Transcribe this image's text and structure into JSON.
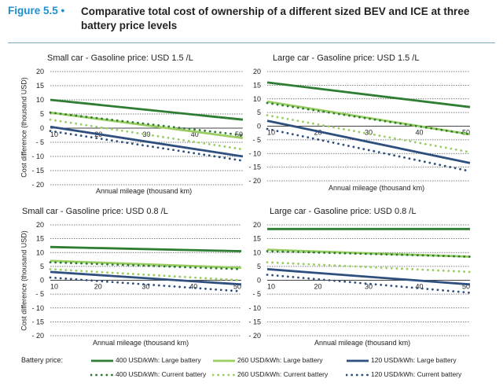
{
  "figure": {
    "number": "Figure 5.5 •",
    "title": "Comparative total cost of ownership of a different sized BEV and ICE at three battery price levels"
  },
  "colors": {
    "dark_green": "#2e7d32",
    "light_green": "#9acd62",
    "navy": "#2f4f7f",
    "rule": "#7aa6c8"
  },
  "legend": {
    "title": "Battery price:",
    "items": [
      {
        "label": "400 USD/kWh: Large battery",
        "color": "#2e7d32",
        "style": "solid"
      },
      {
        "label": "260 USD/kWh: Large battery",
        "color": "#9acd62",
        "style": "solid"
      },
      {
        "label": "120 USD/kWh: Large battery",
        "color": "#2f4f7f",
        "style": "solid"
      },
      {
        "label": "400 USD/kWh: Current battery",
        "color": "#2e7d32",
        "style": "dotted"
      },
      {
        "label": "260 USD/kWh: Current battery",
        "color": "#9acd62",
        "style": "dotted"
      },
      {
        "label": "120 USD/kWh: Current battery",
        "color": "#2f4f7f",
        "style": "dotted"
      }
    ]
  },
  "chart_data": [
    {
      "type": "line",
      "title": "Small car - Gasoline price: USD 1.5 /L",
      "xlabel": "Annual mileage (thousand km)",
      "ylabel": "Cost difference (thousand USD)",
      "xlim": [
        10,
        50
      ],
      "ylim": [
        -20,
        20
      ],
      "xticks": [
        "10",
        "20",
        "30",
        "40",
        "50"
      ],
      "yticks": [
        "20",
        "15",
        "10",
        "5",
        "0",
        "- 5",
        "- 10",
        "- 15",
        "- 20"
      ],
      "x": [
        10,
        50
      ],
      "series": [
        {
          "name": "400 USD/kWh: Large battery",
          "values": [
            10,
            3
          ]
        },
        {
          "name": "260 USD/kWh: Large battery",
          "values": [
            5.5,
            -3.5
          ]
        },
        {
          "name": "120 USD/kWh: Large battery",
          "values": [
            0.5,
            -10
          ]
        },
        {
          "name": "400 USD/kWh: Current battery",
          "values": [
            5.5,
            -2.5
          ]
        },
        {
          "name": "260 USD/kWh: Current battery",
          "values": [
            3,
            -7.5
          ]
        },
        {
          "name": "120 USD/kWh: Current battery",
          "values": [
            -1,
            -11.5
          ]
        }
      ],
      "grid": true
    },
    {
      "type": "line",
      "title": "Large car - Gasoline price: USD 1.5 /L",
      "xlabel": "Annual mileage (thousand km)",
      "ylabel": "",
      "xlim": [
        10,
        50
      ],
      "ylim": [
        -20,
        20
      ],
      "xticks": [
        "10",
        "20",
        "30",
        "40",
        "50"
      ],
      "yticks": [
        "20",
        "15",
        "10",
        "5",
        "0",
        "- 5",
        "- 10",
        "- 15",
        "- 20"
      ],
      "x": [
        10,
        50
      ],
      "series": [
        {
          "name": "400 USD/kWh: Large battery",
          "values": [
            16,
            7
          ]
        },
        {
          "name": "260 USD/kWh: Large battery",
          "values": [
            9,
            -3
          ]
        },
        {
          "name": "120 USD/kWh: Large battery",
          "values": [
            2,
            -13.5
          ]
        },
        {
          "name": "400 USD/kWh: Current battery",
          "values": [
            8.5,
            -3
          ]
        },
        {
          "name": "260 USD/kWh: Current battery",
          "values": [
            4,
            -9.5
          ]
        },
        {
          "name": "120 USD/kWh: Current battery",
          "values": [
            -1,
            -16.5
          ]
        }
      ],
      "grid": true
    },
    {
      "type": "line",
      "title": "Small car - Gasoline price: USD 0.8 /L",
      "xlabel": "Annual mileage (thousand km)",
      "ylabel": "Cost difference (thousand USD)",
      "xlim": [
        10,
        50
      ],
      "ylim": [
        -20,
        20
      ],
      "xticks": [
        "10",
        "20",
        "30",
        "40",
        "50"
      ],
      "yticks": [
        "20",
        "15",
        "10",
        "5",
        "0",
        "- 5",
        "- 10",
        "- 15",
        "- 20"
      ],
      "x": [
        10,
        50
      ],
      "series": [
        {
          "name": "400 USD/kWh: Large battery",
          "values": [
            12,
            10.5
          ]
        },
        {
          "name": "260 USD/kWh: Large battery",
          "values": [
            7,
            4.5
          ]
        },
        {
          "name": "120 USD/kWh: Large battery",
          "values": [
            3,
            -1.5
          ]
        },
        {
          "name": "400 USD/kWh: Current battery",
          "values": [
            6.5,
            4
          ]
        },
        {
          "name": "260 USD/kWh: Current battery",
          "values": [
            4,
            0
          ]
        },
        {
          "name": "120 USD/kWh: Current battery",
          "values": [
            1,
            -4
          ]
        }
      ],
      "grid": true
    },
    {
      "type": "line",
      "title": "Large car - Gasoline price: USD 0.8 /L",
      "xlabel": "Annual mileage (thousand km)",
      "ylabel": "",
      "xlim": [
        10,
        50
      ],
      "ylim": [
        -20,
        20
      ],
      "xticks": [
        "10",
        "20",
        "30",
        "40",
        "50"
      ],
      "yticks": [
        "20",
        "15",
        "10",
        "5",
        "0",
        "- 5",
        "- 10",
        "- 15",
        "- 20"
      ],
      "x": [
        10,
        50
      ],
      "series": [
        {
          "name": "400 USD/kWh: Large battery",
          "values": [
            18.5,
            18.5
          ]
        },
        {
          "name": "260 USD/kWh: Large battery",
          "values": [
            11,
            8.5
          ]
        },
        {
          "name": "120 USD/kWh: Large battery",
          "values": [
            4,
            -1.5
          ]
        },
        {
          "name": "400 USD/kWh: Current battery",
          "values": [
            10.5,
            8.5
          ]
        },
        {
          "name": "260 USD/kWh: Current battery",
          "values": [
            6.5,
            3
          ]
        },
        {
          "name": "120 USD/kWh: Current battery",
          "values": [
            2,
            -4.5
          ]
        }
      ],
      "grid": true
    }
  ]
}
